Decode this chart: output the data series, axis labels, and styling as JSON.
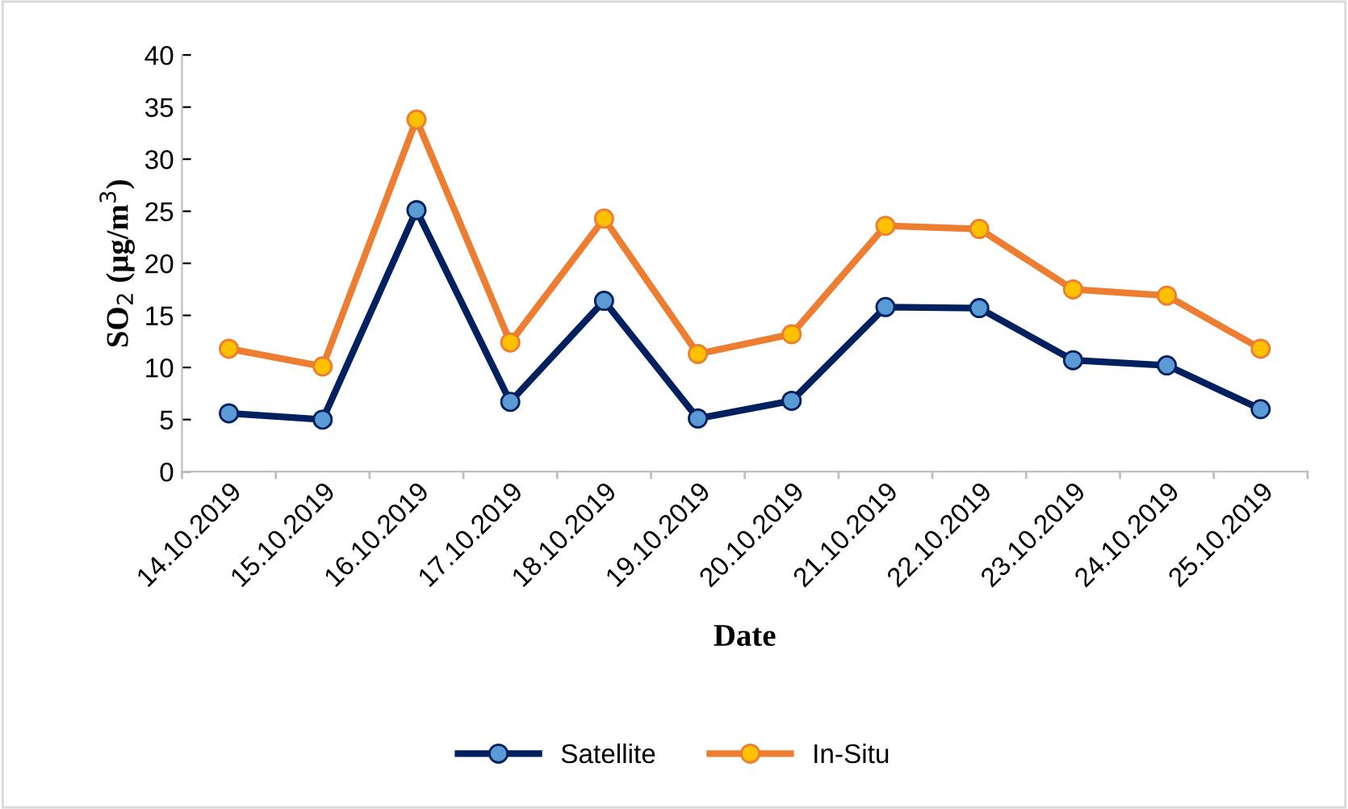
{
  "chart_data": {
    "type": "line",
    "xlabel": "Date",
    "ylabel": "SO$_{2}$ (μg/m$^{3}$)",
    "categories": [
      "14.10.2019",
      "15.10.2019",
      "16.10.2019",
      "17.10.2019",
      "18.10.2019",
      "19.10.2019",
      "20.10.2019",
      "21.10.2019",
      "22.10.2019",
      "23.10.2019",
      "24.10.2019",
      "25.10.2019"
    ],
    "series": [
      {
        "name": "Satellite",
        "color": "#002060",
        "values": [
          5.6,
          5.0,
          25.1,
          6.7,
          16.4,
          5.1,
          6.8,
          15.8,
          15.7,
          10.7,
          10.2,
          6.0
        ]
      },
      {
        "name": "In-Situ",
        "color": "#ed7d31",
        "values": [
          11.8,
          10.1,
          33.8,
          12.4,
          24.3,
          11.3,
          13.2,
          23.6,
          23.3,
          17.5,
          16.9,
          11.8
        ]
      }
    ],
    "ylim": [
      0,
      40
    ],
    "yticks": [
      0,
      5,
      10,
      15,
      20,
      25,
      30,
      35,
      40
    ],
    "grid": false,
    "legend": "bottom",
    "marker": "circle",
    "line_style": "solid"
  }
}
